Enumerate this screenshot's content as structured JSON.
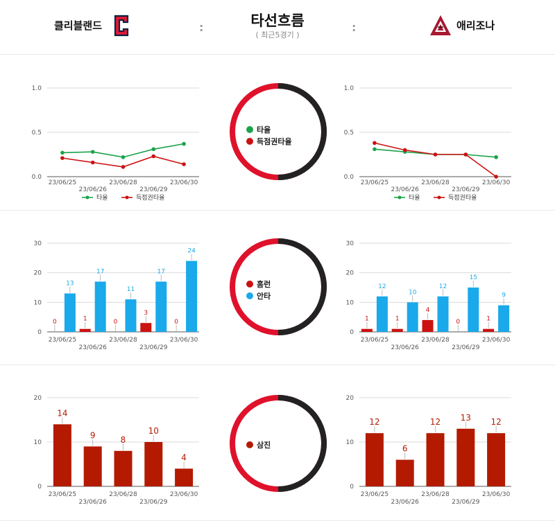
{
  "header": {
    "team_left": "클리블랜드",
    "team_right": "애리조나",
    "separator": ":",
    "title": "타선흐름",
    "subtitle": "( 최근5경기 )"
  },
  "colors": {
    "team_left_ring": "#e0112b",
    "team_right_ring": "#222222",
    "avg_line": "#1aa34a",
    "risp_line": "#cc1111",
    "homerun_bar": "#cc1111",
    "hit_bar": "#1aa9ea",
    "strikeout_bar": "#b31a00"
  },
  "legends": {
    "avg": {
      "items": [
        {
          "label": "타율",
          "color": "#1aa34a"
        },
        {
          "label": "득점권타율",
          "color": "#cc1111"
        }
      ]
    },
    "hits": {
      "items": [
        {
          "label": "홈런",
          "color": "#cc1111"
        },
        {
          "label": "안타",
          "color": "#1aa9ea"
        }
      ]
    },
    "so": {
      "items": [
        {
          "label": "삼진",
          "color": "#b31a00"
        }
      ]
    }
  },
  "chart_data": [
    {
      "id": "left-avg",
      "type": "line",
      "categories": [
        "23/06/25",
        "23/06/26",
        "23/06/28",
        "23/06/29",
        "23/06/30"
      ],
      "series": [
        {
          "name": "타율",
          "values": [
            0.27,
            0.28,
            0.22,
            0.31,
            0.37
          ],
          "color": "#1aa34a"
        },
        {
          "name": "득점권타율",
          "values": [
            0.21,
            0.16,
            0.11,
            0.23,
            0.14
          ],
          "color": "#cc1111"
        }
      ],
      "ylim": [
        0,
        1.0
      ],
      "yticks": [
        "0.0",
        "0.5",
        "1.0"
      ],
      "legend": "bottom",
      "grid": true
    },
    {
      "id": "right-avg",
      "type": "line",
      "categories": [
        "23/06/25",
        "23/06/26",
        "23/06/28",
        "23/06/29",
        "23/06/30"
      ],
      "series": [
        {
          "name": "타율",
          "values": [
            0.31,
            0.28,
            0.25,
            0.25,
            0.22
          ],
          "color": "#1aa34a"
        },
        {
          "name": "득점권타율",
          "values": [
            0.38,
            0.3,
            0.25,
            0.25,
            0.0
          ],
          "color": "#cc1111"
        }
      ],
      "ylim": [
        0,
        1.0
      ],
      "yticks": [
        "0.0",
        "0.5",
        "1.0"
      ],
      "legend": "bottom",
      "grid": true
    },
    {
      "id": "left-hits",
      "type": "bar",
      "categories": [
        "23/06/25",
        "23/06/26",
        "23/06/28",
        "23/06/29",
        "23/06/30"
      ],
      "series": [
        {
          "name": "홈런",
          "values": [
            0,
            1,
            0,
            3,
            0
          ],
          "labels": [
            "0",
            "1",
            "0",
            "3",
            "0"
          ],
          "color": "#cc1111"
        },
        {
          "name": "안타",
          "values": [
            13,
            17,
            11,
            17,
            24
          ],
          "labels": [
            "13",
            "17",
            "11",
            "17",
            "24"
          ],
          "color": "#1aa9ea"
        }
      ],
      "ylim": [
        0,
        30
      ],
      "yticks": [
        "0",
        "10",
        "20",
        "30"
      ],
      "grid": true
    },
    {
      "id": "right-hits",
      "type": "bar",
      "categories": [
        "23/06/25",
        "23/06/26",
        "23/06/28",
        "23/06/29",
        "23/06/30"
      ],
      "series": [
        {
          "name": "홈런",
          "values": [
            1,
            1,
            4,
            0,
            1
          ],
          "labels": [
            "1",
            "1",
            "4",
            "0",
            "1"
          ],
          "color": "#cc1111"
        },
        {
          "name": "안타",
          "values": [
            12,
            10,
            12,
            15,
            9
          ],
          "labels": [
            "12",
            "10",
            "12",
            "15",
            "9"
          ],
          "color": "#1aa9ea"
        }
      ],
      "ylim": [
        0,
        30
      ],
      "yticks": [
        "0",
        "10",
        "20",
        "30"
      ],
      "grid": true
    },
    {
      "id": "left-so",
      "type": "bar",
      "categories": [
        "23/06/25",
        "23/06/26",
        "23/06/28",
        "23/06/29",
        "23/06/30"
      ],
      "series": [
        {
          "name": "삼진",
          "values": [
            14,
            9,
            8,
            10,
            4
          ],
          "labels": [
            "14",
            "9",
            "8",
            "10",
            "4"
          ],
          "color": "#b31a00"
        }
      ],
      "ylim": [
        0,
        20
      ],
      "yticks": [
        "0",
        "10",
        "20"
      ],
      "grid": true
    },
    {
      "id": "right-so",
      "type": "bar",
      "categories": [
        "23/06/25",
        "23/06/26",
        "23/06/28",
        "23/06/29",
        "23/06/30"
      ],
      "series": [
        {
          "name": "삼진",
          "values": [
            12,
            6,
            12,
            13,
            12
          ],
          "labels": [
            "12",
            "6",
            "12",
            "13",
            "12"
          ],
          "color": "#b31a00"
        }
      ],
      "ylim": [
        0,
        20
      ],
      "yticks": [
        "0",
        "10",
        "20"
      ],
      "grid": true
    }
  ]
}
